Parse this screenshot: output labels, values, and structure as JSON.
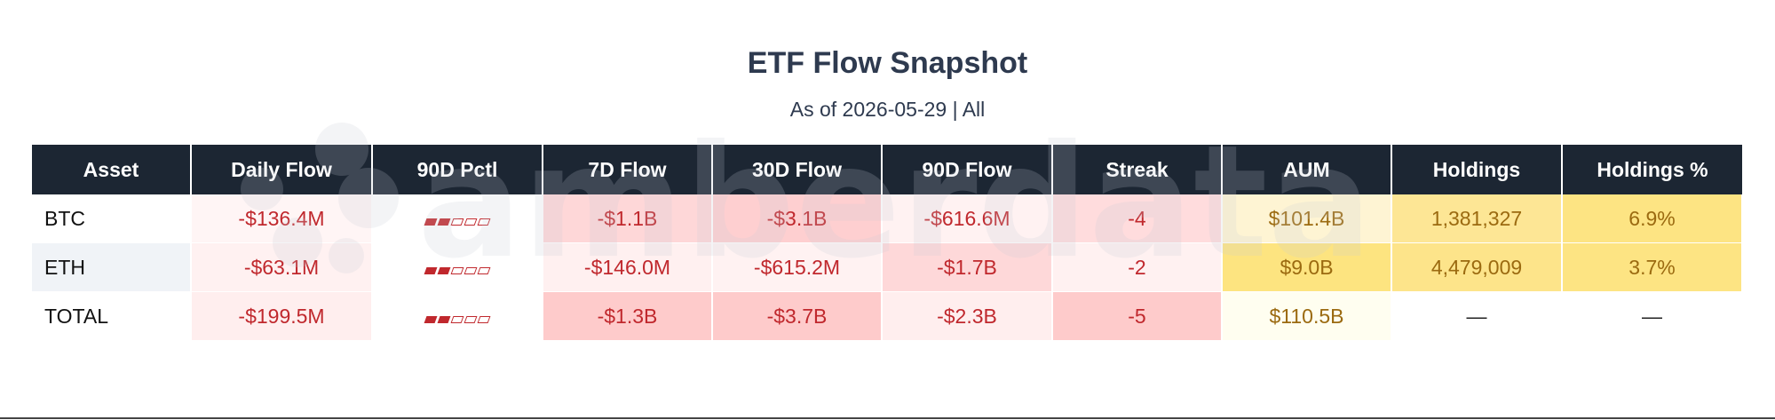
{
  "title": "ETF Flow Snapshot",
  "subtitle": "As of 2026-05-29 | All",
  "watermark": "amberdata",
  "chart_data": {
    "type": "table",
    "columns": [
      "Asset",
      "Daily Flow",
      "90D Pctl",
      "7D Flow",
      "30D Flow",
      "90D Flow",
      "Streak",
      "AUM",
      "Holdings",
      "Holdings %"
    ],
    "rows": [
      {
        "asset": "BTC",
        "daily_flow": "-$136.4M",
        "pctl_filled": 2,
        "pctl_total": 5,
        "flow_7d": "-$1.1B",
        "flow_30d": "-$3.1B",
        "flow_90d": "-$616.6M",
        "streak": "-4",
        "aum": "$101.4B",
        "holdings": "1,381,327",
        "holdings_pct": "6.9%"
      },
      {
        "asset": "ETH",
        "daily_flow": "-$63.1M",
        "pctl_filled": 2,
        "pctl_total": 5,
        "flow_7d": "-$146.0M",
        "flow_30d": "-$615.2M",
        "flow_90d": "-$1.7B",
        "streak": "-2",
        "aum": "$9.0B",
        "holdings": "4,479,009",
        "holdings_pct": "3.7%"
      },
      {
        "asset": "TOTAL",
        "daily_flow": "-$199.5M",
        "pctl_filled": 2,
        "pctl_total": 5,
        "flow_7d": "-$1.3B",
        "flow_30d": "-$3.7B",
        "flow_90d": "-$2.3B",
        "streak": "-5",
        "aum": "$110.5B",
        "holdings": "—",
        "holdings_pct": "—"
      }
    ],
    "cell_colors": [
      [
        "#ffffff",
        "#fff5f5",
        "#ffffff",
        "#fed7d8",
        "#fecfd0",
        "#fff2f2",
        "#ffdcdd",
        "#fef4d3",
        "#fde695",
        "#fde483"
      ],
      [
        "#f0f3f7",
        "#fff1f1",
        "#ffffff",
        "#fff0f0",
        "#fff2f2",
        "#fed8d9",
        "#fff1f1",
        "#fde480",
        "#fde48a",
        "#fde483"
      ],
      [
        "#ffffff",
        "#ffeeee",
        "#ffffff",
        "#fecbcb",
        "#fecbcb",
        "#ffeeee",
        "#fecbcb",
        "#fffef0",
        "#ffffff",
        "#ffffff"
      ]
    ],
    "colors": {
      "header_bg": "#1c2633",
      "negative_text": "#c0282d",
      "aum_text": "#9b6a10"
    }
  }
}
